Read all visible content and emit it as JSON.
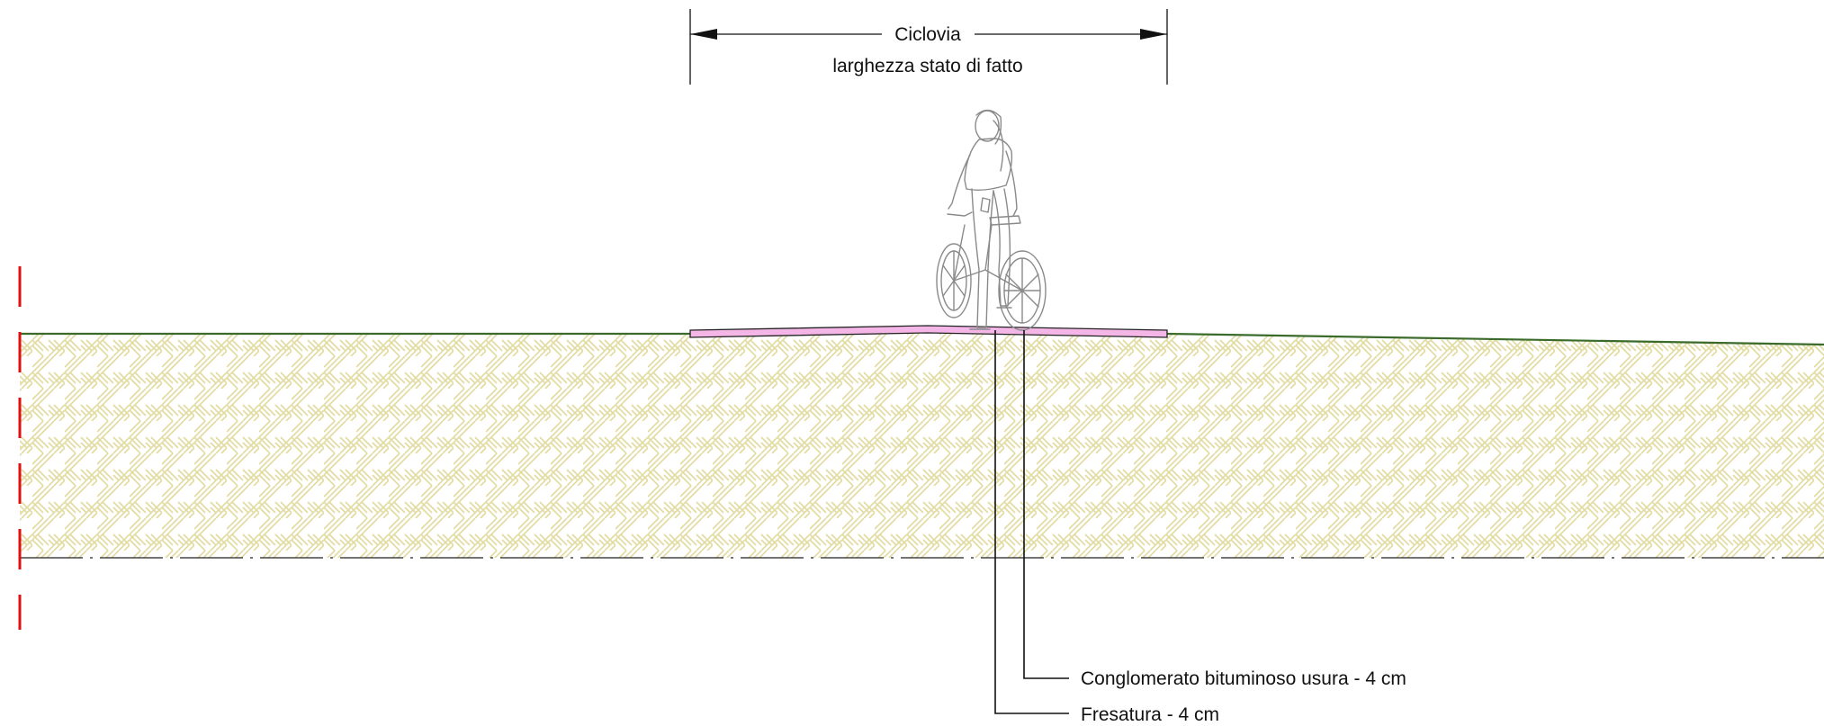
{
  "dimension": {
    "title": "Ciclovia",
    "subtitle": "larghezza stato di fatto"
  },
  "callouts": [
    {
      "id": "usura",
      "label": "Conglomerato bituminoso usura - 4 cm"
    },
    {
      "id": "fresatura",
      "label": "Fresatura - 4 cm"
    }
  ],
  "colors": {
    "ground_line": "#3a6b2a",
    "hatch": "#e2dba0",
    "surface_layer": "#f4b6e6",
    "axis_marker": "#e01010",
    "ink": "#111111",
    "figure": "#8a8a8a"
  },
  "icons": {
    "cyclist": "cyclist-figure",
    "arrows": "dimension-arrowheads"
  }
}
